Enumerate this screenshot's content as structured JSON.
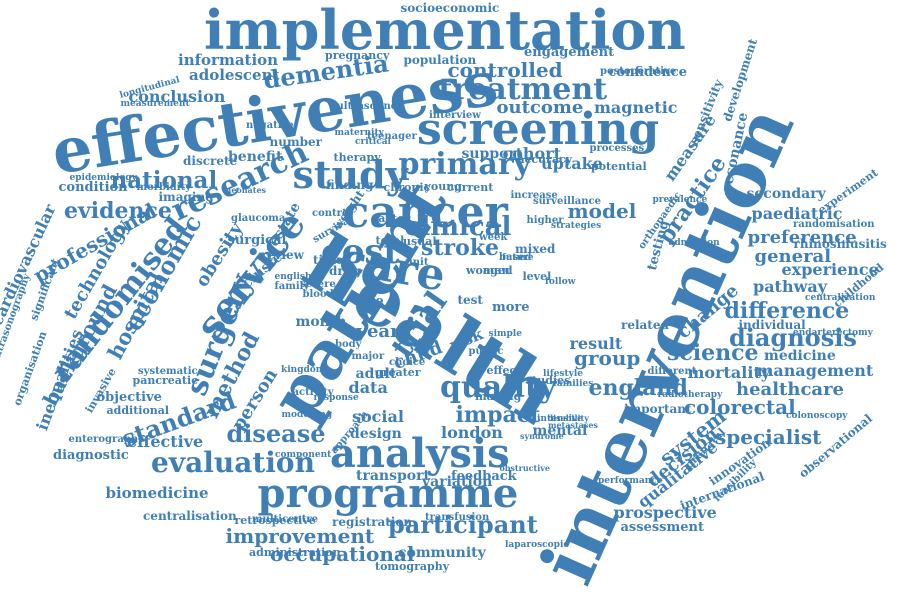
{
  "style": {
    "word_color": "#3f7fb5",
    "background": "#ffffff"
  },
  "words": [
    "implementation",
    "effectiveness",
    "screening",
    "health",
    "patient",
    "intervention",
    "care",
    "service",
    "cancer",
    "cost",
    "study",
    "programme",
    "analysis",
    "research",
    "treatment",
    "controlled",
    "dementia",
    "socioeconomic",
    "information",
    "adolescent",
    "national",
    "evidence",
    "randomised",
    "economic",
    "hospital",
    "surgery",
    "method",
    "primary",
    "clinical",
    "stroke",
    "trial",
    "quality",
    "impact",
    "england",
    "standard",
    "evaluation",
    "disease",
    "participant",
    "improvement",
    "occupational",
    "community",
    "tomography",
    "biomedicine",
    "effective",
    "diagnosis",
    "difference",
    "science",
    "healthcare",
    "colorectal",
    "specialist",
    "system",
    "decision",
    "qualitative",
    "prospective",
    "assessment",
    "experience",
    "preference",
    "general",
    "pathway",
    "change",
    "practice",
    "measure",
    "testing",
    "model",
    "group",
    "result",
    "london",
    "social",
    "design",
    "data",
    "adult",
    "year",
    "child",
    "risk",
    "month",
    "person",
    "technology",
    "professional",
    "background",
    "inequalities",
    "cardiovascular",
    "conclusion",
    "population",
    "outcome",
    "magnetic",
    "cohort",
    "uptake",
    "support",
    "benefit",
    "discrete",
    "imaging",
    "condition",
    "morbidity",
    "epidemiology",
    "obesity",
    "prostate",
    "review",
    "cluster",
    "surgical",
    "pregnancy",
    "engagement",
    "confidence",
    "development",
    "resonance",
    "sensitivity",
    "secondary",
    "paediatric",
    "randomisation",
    "rhinosinusitis",
    "experiment",
    "management",
    "mortality",
    "medicine",
    "individual",
    "endarterectomy",
    "childhood",
    "centralization",
    "colonoscopy",
    "innovation",
    "feasibility",
    "international",
    "observational",
    "prenatal",
    "radiotherapy",
    "different",
    "important",
    "related",
    "mental",
    "variation",
    "transport",
    "feedback",
    "registration",
    "transfusion",
    "laparoscopic",
    "administration",
    "multicentre",
    "retrospective",
    "centralisation",
    "diagnostic",
    "enterography",
    "organisation",
    "additional",
    "objective",
    "pancreatic",
    "invasive",
    "systematic",
    "number",
    "therapy",
    "finding",
    "chronic",
    "young",
    "current",
    "factor",
    "woman",
    "week",
    "future",
    "severe",
    "blood",
    "family",
    "english",
    "life",
    "test",
    "more",
    "mixed",
    "aged",
    "level",
    "based",
    "making",
    "studies",
    "intensive",
    "approach",
    "body",
    "greater",
    "public",
    "effect",
    "choice",
    "major",
    "activity",
    "modelling",
    "component",
    "response",
    "kingdom",
    "surveillance",
    "longitudinal",
    "measurement",
    "ultrasonography",
    "significant",
    "glaucoma",
    "neonates",
    "negative",
    "ultrasound",
    "teenager",
    "maternity",
    "critical",
    "interview",
    "accuracy",
    "processes",
    "potential",
    "postoperative",
    "orthopaedic",
    "prevalence",
    "strategies",
    "admission",
    "lifestyle",
    "families",
    "performance",
    "syndrome",
    "obstructive",
    "metastases",
    "disability",
    "increase",
    "higher",
    "control",
    "survival",
    "weight",
    "unit",
    "total",
    "usual",
    "drug",
    "time",
    "simple",
    "follow"
  ]
}
